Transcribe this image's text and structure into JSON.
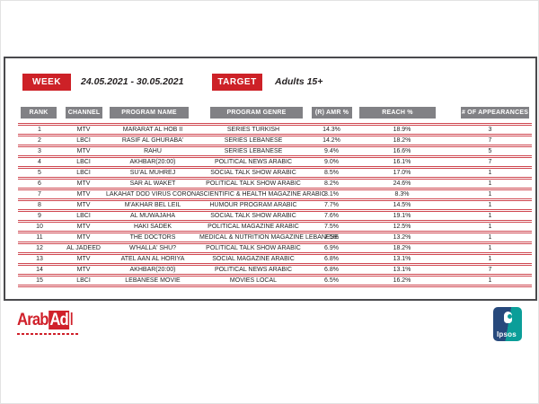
{
  "header": {
    "week_label": "WEEK",
    "week_value": "24.05.2021 - 30.05.2021",
    "target_label": "TARGET",
    "target_value": "Adults 15+"
  },
  "table": {
    "columns": [
      "RANK",
      "CHANNEL",
      "PROGRAM NAME",
      "PROGRAM GENRE",
      "(R) AMR %",
      "REACH %",
      "# OF APPEARANCES"
    ],
    "rows": [
      {
        "rank": "1",
        "channel": "MTV",
        "program": "MARARAT AL HOB II",
        "genre": "SERIES TURKISH",
        "amr": "14.3%",
        "reach": "18.9%",
        "appearances": "3"
      },
      {
        "rank": "2",
        "channel": "LBCI",
        "program": "RASIF AL GHURABA'",
        "genre": "SERIES LEBANESE",
        "amr": "14.2%",
        "reach": "18.2%",
        "appearances": "7"
      },
      {
        "rank": "3",
        "channel": "MTV",
        "program": "RAHU",
        "genre": "SERIES LEBANESE",
        "amr": "9.4%",
        "reach": "16.6%",
        "appearances": "5"
      },
      {
        "rank": "4",
        "channel": "LBCI",
        "program": "AKHBAR(20:00)",
        "genre": "POLITICAL NEWS ARABIC",
        "amr": "9.0%",
        "reach": "16.1%",
        "appearances": "7"
      },
      {
        "rank": "5",
        "channel": "LBCI",
        "program": "SU'AL MUHREJ",
        "genre": "SOCIAL TALK SHOW ARABIC",
        "amr": "8.5%",
        "reach": "17.0%",
        "appearances": "1"
      },
      {
        "rank": "6",
        "channel": "MTV",
        "program": "SAR AL WAKET",
        "genre": "POLITICAL TALK SHOW ARABIC",
        "amr": "8.2%",
        "reach": "24.6%",
        "appearances": "1"
      },
      {
        "rank": "7",
        "channel": "MTV",
        "program": "LAKAHAT DOD VIRUS CORONA",
        "genre": "SCIENTIFIC & HEALTH MAGAZINE ARABIC",
        "amr": "8.1%",
        "reach": "8.3%",
        "appearances": "1"
      },
      {
        "rank": "8",
        "channel": "MTV",
        "program": "M'AKHAR BEL LEIL",
        "genre": "HUMOUR PROGRAM ARABIC",
        "amr": "7.7%",
        "reach": "14.5%",
        "appearances": "1"
      },
      {
        "rank": "9",
        "channel": "LBCI",
        "program": "AL MUWAJAHA",
        "genre": "SOCIAL TALK SHOW ARABIC",
        "amr": "7.6%",
        "reach": "19.1%",
        "appearances": "1"
      },
      {
        "rank": "10",
        "channel": "MTV",
        "program": "HAKI SADEK",
        "genre": "POLITICAL MAGAZINE ARABIC",
        "amr": "7.5%",
        "reach": "12.5%",
        "appearances": "1"
      },
      {
        "rank": "11",
        "channel": "MTV",
        "program": "THE DOCTORS",
        "genre": "MEDICAL & NUTRITION MAGAZINE LEBANESE",
        "amr": "7.5%",
        "reach": "13.2%",
        "appearances": "1"
      },
      {
        "rank": "12",
        "channel": "AL JADEED",
        "program": "W'HALLA' SHU?",
        "genre": "POLITICAL TALK SHOW ARABIC",
        "amr": "6.9%",
        "reach": "18.2%",
        "appearances": "1"
      },
      {
        "rank": "13",
        "channel": "MTV",
        "program": "ATEL AAN AL HORIYA",
        "genre": "SOCIAL MAGAZINE ARABIC",
        "amr": "6.8%",
        "reach": "13.1%",
        "appearances": "1"
      },
      {
        "rank": "14",
        "channel": "MTV",
        "program": "AKHBAR(20:00)",
        "genre": "POLITICAL NEWS ARABIC",
        "amr": "6.8%",
        "reach": "13.1%",
        "appearances": "7"
      },
      {
        "rank": "15",
        "channel": "LBCI",
        "program": "LEBANESE MOVIE",
        "genre": "MOVIES LOCAL",
        "amr": "6.5%",
        "reach": "16.2%",
        "appearances": "1"
      }
    ]
  },
  "footer": {
    "arabad_logo": {
      "arab": "Arab",
      "ad": "Ad"
    },
    "ipsos_logo": {
      "text": "Ipsos"
    }
  },
  "colors": {
    "accent_red": "#cd2127",
    "header_gray": "#818185",
    "separator_red": "#cf4750",
    "board_border_gray": "#4a4a4d",
    "ipsos_navy": "#27497c",
    "ipsos_teal": "#0b9e99"
  }
}
